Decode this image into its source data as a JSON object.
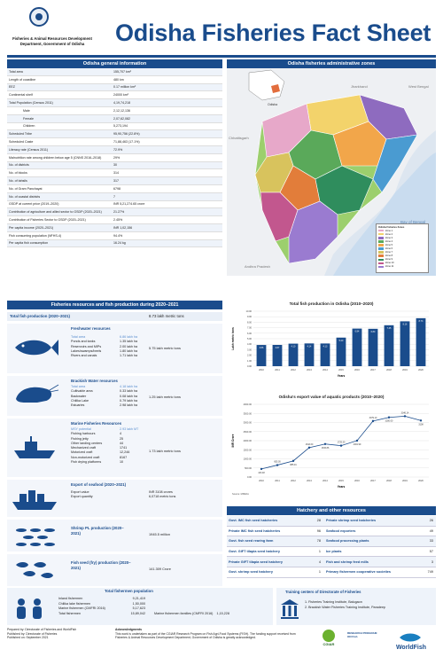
{
  "header": {
    "dept_line1": "Fisheries & Animal Resources Development",
    "dept_line2": "Department, Government of Odisha",
    "title": "Odisha Fisheries Fact Sheet"
  },
  "general": {
    "heading": "Odisha general information",
    "rows": [
      {
        "label": "Total area",
        "value": "155,707 km²",
        "indent": false
      },
      {
        "label": "Length of coastline",
        "value": "480 km",
        "indent": false
      },
      {
        "label": "EEZ",
        "value": "0.17 million km²",
        "indent": false
      },
      {
        "label": "Continental shelf",
        "value": "24000 km²",
        "indent": false
      },
      {
        "label": "Total Population (Census 2011)",
        "value": "4,19,74,218",
        "indent": false
      },
      {
        "label": "Male",
        "value": "2,12,12,136",
        "indent": true
      },
      {
        "label": "Female",
        "value": "2,07,62,082",
        "indent": true
      },
      {
        "label": "Children",
        "value": "5,273,194",
        "indent": true
      },
      {
        "label": "Scheduled Tribe",
        "value": "95,90,756 (22.8%)",
        "indent": false
      },
      {
        "label": "Scheduled Caste",
        "value": "71,88,463 (17.1%)",
        "indent": false
      },
      {
        "label": "Literacy rate (Census 2011)",
        "value": "72.9%",
        "indent": false
      },
      {
        "label": "Malnutrition rate among children below age 5 (CNNS 2016–2018)",
        "value": "29%",
        "indent": false
      },
      {
        "label": "No. of districts",
        "value": "30",
        "indent": false
      },
      {
        "label": "No. of blocks",
        "value": "314",
        "indent": false
      },
      {
        "label": "No. of tahsils",
        "value": "317",
        "indent": false
      },
      {
        "label": "No. of Gram Panchayat",
        "value": "6798",
        "indent": false
      },
      {
        "label": "No. of coastal districts",
        "value": "7",
        "indent": false
      },
      {
        "label": "GSDP at current price (2019–2020)",
        "value": "INR 5,21,274.65 crore",
        "indent": false
      },
      {
        "label": "Contribution of agriculture and allied sector to GSDP (2020–2021)",
        "value": "21.27%",
        "indent": false
      },
      {
        "label": "Contribution of Fisheries Sector to GSDP (2020–2021)",
        "value": "2.45%",
        "indent": false
      },
      {
        "label": "Per capita income (2020–2021)",
        "value": "INR 1,02,156",
        "indent": false
      },
      {
        "label": "Fish consuming population (NFHS-4)",
        "value": "94.4%",
        "indent": false
      },
      {
        "label": "Per capita fish consumption",
        "value": "16.24 kg",
        "indent": false
      }
    ]
  },
  "map": {
    "heading": "Odisha fisheries administrative zones",
    "labels": {
      "jharkhand": "Jharkhand",
      "wb": "West Bengal",
      "chhattisgarh": "Chhattisgarh",
      "andhra": "Andhra Pradesh",
      "bay": "Bay of Bengal",
      "odisha": "Odisha"
    },
    "legend_title": "Odisha Fisheries Zones",
    "legend": [
      "Zone 1",
      "Zone 2",
      "Zone 3",
      "Zone 4",
      "Zone 5",
      "Zone 6",
      "Zone 7",
      "Zone 8",
      "Zone 9",
      "Zone 10",
      "Zone 11"
    ]
  },
  "resources": {
    "heading": "Fisheries resources and fish production during 2020–2021",
    "total_label": "Total fish production (2020–2021)",
    "total_value": "8.73 lakh metric tons",
    "fresh": {
      "title": "Freshwater resources",
      "cap_label": "Total area",
      "cap_value": "6.86 lakh ha",
      "lines": [
        [
          "Ponds and tanks",
          "1.35 lakh ha"
        ],
        [
          "Reservoirs and MIPs",
          "2.00 lakh ha"
        ],
        [
          "Lakes/swamps/beels",
          "1.80 lakh ha"
        ],
        [
          "Rivers and canals",
          "1.71 lakh ha"
        ]
      ],
      "total": "5.75 lakh metric tons"
    },
    "brackish": {
      "title": "Brackish Water resources",
      "cap_label": "Total area",
      "cap_value": "4.18 lakh ha",
      "lines": [
        [
          "Cultivable area",
          "0.33 lakh ha"
        ],
        [
          "Backwater",
          "0.08 lakh ha"
        ],
        [
          "Chilika Lake",
          "0.79 lakh ha"
        ],
        [
          "Estuaries",
          "2.98 lakh ha"
        ]
      ],
      "total": "1.25 lakh metric tons"
    },
    "marine": {
      "title": "Marine Fisheries Resources",
      "cap_label": "MSY potential",
      "cap_value": "2.93 lakh MT",
      "lines": [
        [
          "Fishing harbours",
          "4"
        ],
        [
          "Fishing jetty",
          "25"
        ],
        [
          "Other landing centers",
          "44"
        ],
        [
          "Mechanized craft",
          "1741"
        ],
        [
          "Motorized craft",
          "12,246"
        ],
        [
          "Non-motorized craft",
          "8167"
        ],
        [
          "Fish drying platforms",
          "10"
        ]
      ],
      "total": "1.73 lakh metric tons"
    },
    "export": {
      "title": "Export of seafood (2020–2021)",
      "lines": [
        [
          "Export value",
          "INR 3108 crores"
        ],
        [
          "Export quantity",
          "6,0718 metric tons"
        ]
      ]
    },
    "shrimp": {
      "title": "Shrimp PL production (2020–2021)",
      "total": "1945.5 million"
    },
    "fry": {
      "title": "Fish seed (fry) production (2020–2021)",
      "total": "141.309 Crore"
    }
  },
  "production_chart": {
    "title": "Total fish production in Odisha (2010–2020)",
    "ylabel": "Lakh metric tons",
    "xlabel": "Years"
  },
  "export_chart": {
    "title": "Odisha's export value of aquatic products (2010–2020)",
    "ylabel": "INR Crore",
    "xlabel": "Years",
    "source": "Source: MPEDA"
  },
  "chart_data": [
    {
      "type": "bar",
      "title": "Total fish production in Odisha (2010–2020)",
      "xlabel": "Years",
      "ylabel": "Lakh metric tons",
      "categories": [
        "2010",
        "2011",
        "2012",
        "2013",
        "2014",
        "2015",
        "2016",
        "2017",
        "2018",
        "2019",
        "2020"
      ],
      "values": [
        3.86,
        3.87,
        4.1,
        4.14,
        4.13,
        5.2,
        6.84,
        6.8,
        7.45,
        8.16,
        8.73
      ],
      "ylim": [
        0,
        10
      ],
      "yticks": [
        "0.00",
        "1.00",
        "2.00",
        "3.00",
        "4.00",
        "5.00",
        "6.00",
        "7.00",
        "8.00",
        "9.00",
        "10.00"
      ],
      "color": "#1a4c8c"
    },
    {
      "type": "line",
      "title": "Odisha's export value of aquatic products (2010–2020)",
      "xlabel": "Years",
      "ylabel": "INR Crore",
      "categories": [
        "2010",
        "2011",
        "2012",
        "2013",
        "2014",
        "2015",
        "2016",
        "2017",
        "2018",
        "2019",
        "2020"
      ],
      "values": [
        443.48,
        655.05,
        885.91,
        1616.6,
        1815.86,
        1725.3,
        2001.99,
        3079.1,
        3280.6,
        3346.14,
        3108
      ],
      "ylim": [
        0,
        4000
      ],
      "yticks": [
        "0.00",
        "500.00",
        "1000.00",
        "1500.00",
        "2000.00",
        "2500.00",
        "3000.00",
        "3500.00",
        "4000.00"
      ],
      "labels": [
        "443.48",
        "655.05",
        "885.91",
        "1616.60",
        "1815.86",
        "1725.30",
        "2001.99",
        "3079.10",
        "3280.60",
        "3346.14",
        "3108"
      ],
      "color": "#1a4c8c"
    }
  ],
  "hatchery": {
    "heading": "Hatchery and other resources",
    "rows": [
      [
        "Govt. IMC fish seed hatcheries",
        "28",
        "Private shrimp seed hatcheries",
        "26"
      ],
      [
        "Private IMC fish seed hatcheries",
        "96",
        "Seafood exporters",
        "49"
      ],
      [
        "Govt. fish seed rearing farm",
        "78",
        "Seafood processing plants",
        "33"
      ],
      [
        "Govt. GIFT tilapia seed hatchery",
        "1",
        "Ice plants",
        "57"
      ],
      [
        "Private GIFT tilapia seed hatchery",
        "4",
        "Fish and shrimp feed mills",
        "3"
      ],
      [
        "Govt. shrimp seed hatchery",
        "1",
        "Primary fishermen cooperative societies",
        "749"
      ]
    ]
  },
  "fishermen": {
    "heading": "Total fishermen population",
    "rows": [
      [
        "Inland fishermen",
        "9,21,419"
      ],
      [
        "Chilika lake fishermen",
        "1,50,000"
      ],
      [
        "Marine fishermen (CMFRI 2016)",
        "5,17,623"
      ],
      [
        "Total fishermen",
        "15,89,042"
      ]
    ],
    "families_label": "Marine fishermen families (CMFRI 2016)",
    "families_value": "1,15,228"
  },
  "training": {
    "heading": "Training centers of Directorate of Fisheries",
    "items": [
      "1. Fisheries Training Institute, Balugaon",
      "2. Brackish Water Fisheries Training Institute, Paradeep"
    ]
  },
  "footer": {
    "prepared": "Prepared by:   Directorate of Fisheries and WorldFish",
    "published": "Published by:  Directorate of Fisheries",
    "date": "Published on:  September 2021",
    "ack_title": "Acknowledgments",
    "ack": "This work is undertaken as part of the CGIAR Research Program on Fish Agri-Food Systems (FISH). The funding support received from Fisheries & Animal Resources Development Department, Government of Odisha is greatly acknowledged.",
    "logo1": "CGIAR",
    "logo2": "RESEARCH PROGRAM ON Fish",
    "logo3": "WorldFish"
  }
}
